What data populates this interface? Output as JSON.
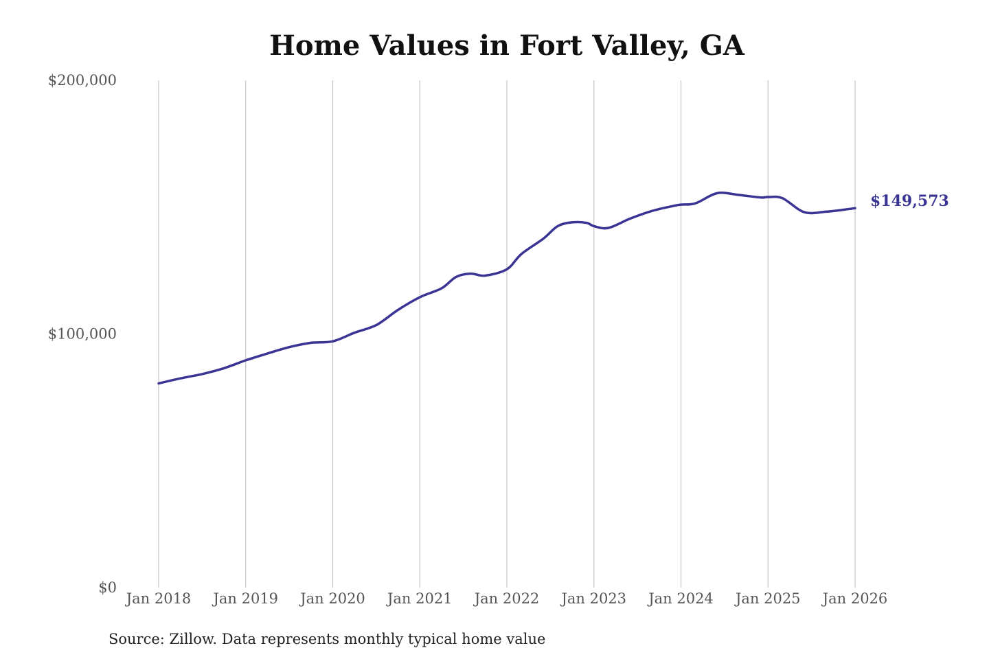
{
  "colors": {
    "line": "#3a3494",
    "background": "#ffffff",
    "grid": "#c4c4c4"
  },
  "chart_data": {
    "type": "line",
    "title": "Home Values in Fort Valley, GA",
    "xlabel": "",
    "ylabel": "",
    "ylim": [
      0,
      200000
    ],
    "yticks": [
      0,
      100000,
      200000
    ],
    "ytick_labels": [
      "$0",
      "$100,000",
      "$200,000"
    ],
    "xlim": [
      "2018-01",
      "2026-01"
    ],
    "xticks": [
      "2018-01",
      "2019-01",
      "2020-01",
      "2021-01",
      "2022-01",
      "2023-01",
      "2024-01",
      "2025-01",
      "2026-01"
    ],
    "xtick_labels": [
      "Jan 2018",
      "Jan 2019",
      "Jan 2020",
      "Jan 2021",
      "Jan 2022",
      "Jan 2023",
      "Jan 2024",
      "Jan 2025",
      "Jan 2026"
    ],
    "grid": "vertical lines at x ticks",
    "legend": "none",
    "end_label": "$149,573",
    "series": [
      {
        "color": "#3a3494",
        "points": [
          [
            "2018-01",
            80500
          ],
          [
            "2018-04",
            82500
          ],
          [
            "2018-07",
            84200
          ],
          [
            "2018-10",
            86500
          ],
          [
            "2019-01",
            89600
          ],
          [
            "2019-04",
            92300
          ],
          [
            "2019-07",
            94800
          ],
          [
            "2019-10",
            96500
          ],
          [
            "2020-01",
            97100
          ],
          [
            "2020-04",
            100500
          ],
          [
            "2020-07",
            103500
          ],
          [
            "2020-10",
            109500
          ],
          [
            "2021-01",
            114500
          ],
          [
            "2021-04",
            118000
          ],
          [
            "2021-06",
            122500
          ],
          [
            "2021-08",
            123800
          ],
          [
            "2021-10",
            123000
          ],
          [
            "2022-01",
            125500
          ],
          [
            "2022-03",
            131500
          ],
          [
            "2022-06",
            137500
          ],
          [
            "2022-08",
            142500
          ],
          [
            "2022-10",
            144000
          ],
          [
            "2022-12",
            143800
          ],
          [
            "2023-01",
            142500
          ],
          [
            "2023-03",
            141800
          ],
          [
            "2023-06",
            145500
          ],
          [
            "2023-09",
            148500
          ],
          [
            "2023-12",
            150500
          ],
          [
            "2024-01",
            151000
          ],
          [
            "2024-03",
            151500
          ],
          [
            "2024-06",
            155500
          ],
          [
            "2024-09",
            154800
          ],
          [
            "2024-12",
            153800
          ],
          [
            "2025-01",
            154000
          ],
          [
            "2025-03",
            153500
          ],
          [
            "2025-06",
            148000
          ],
          [
            "2025-09",
            148200
          ],
          [
            "2025-12",
            149200
          ],
          [
            "2026-01",
            149573
          ]
        ]
      }
    ]
  },
  "footer": {
    "source": "Source: Zillow. Data represents monthly typical home value"
  }
}
